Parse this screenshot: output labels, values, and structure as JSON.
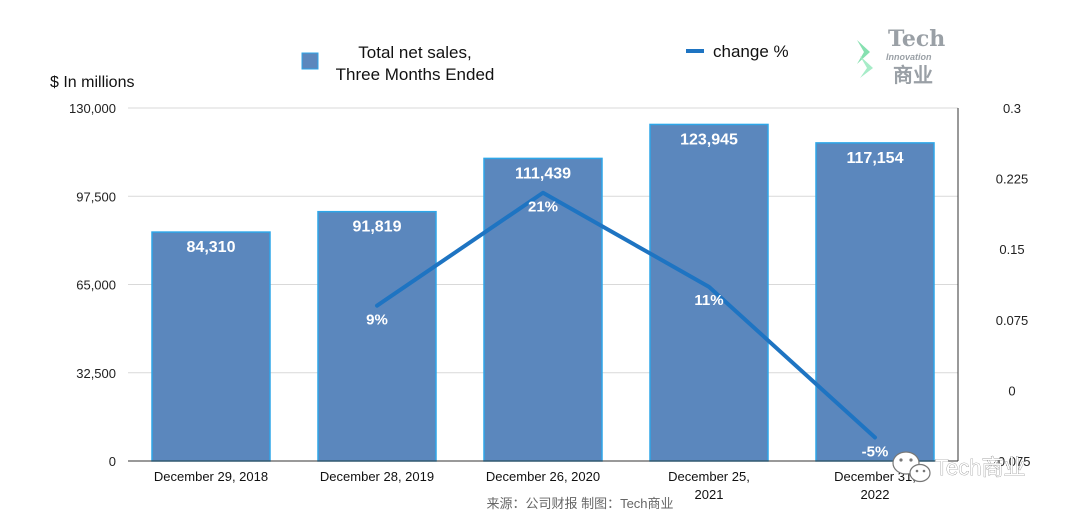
{
  "chart_data": {
    "type": "bar",
    "y_axis_title": "$ In millions",
    "categories": [
      [
        "December 29, 2018"
      ],
      [
        "December 28, 2019"
      ],
      [
        "December 26, 2020"
      ],
      [
        "December 25,",
        "2021"
      ],
      [
        "December 31,",
        "2022"
      ]
    ],
    "bar_series": {
      "name_lines": [
        "Total net sales,",
        "Three Months Ended"
      ],
      "values": [
        84310,
        91819,
        111439,
        123945,
        117154
      ],
      "labels": [
        "84,310",
        "91,819",
        "111,439",
        "123,945",
        "117,154"
      ],
      "color": "#5b87bd",
      "edge_color": "#2ea6e8"
    },
    "line_series": {
      "name": "change %",
      "x_index": [
        1,
        2,
        3,
        4
      ],
      "values": [
        0.09,
        0.21,
        0.11,
        -0.05
      ],
      "labels": [
        "9%",
        "21%",
        "11%",
        "-5%"
      ],
      "color": "#1e74c2"
    },
    "y_left": {
      "min": 0,
      "max": 130000,
      "ticks": [
        "0",
        "32,500",
        "65,000",
        "97,500",
        "130,000"
      ]
    },
    "y_right": {
      "min": -0.075,
      "max": 0.3,
      "ticks": [
        "-0.075",
        "0",
        "0.075",
        "0.15",
        "0.225",
        "0.3"
      ]
    },
    "grid": true,
    "legend_position": "top"
  },
  "source_text": "来源：公司财报 制图：Tech商业",
  "logo": {
    "line1": "Tech",
    "line2": "Innovation",
    "line3": "商业"
  },
  "watermark": "Tech商业"
}
